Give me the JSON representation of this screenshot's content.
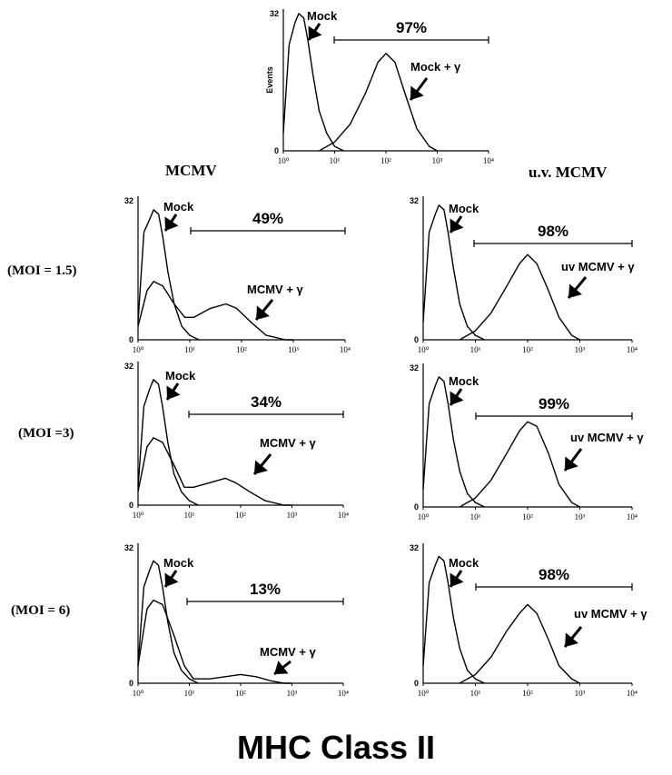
{
  "col_headers": {
    "left": "MCMV",
    "right": "u.v. MCMV"
  },
  "row_labels": [
    "(MOI = 1.5)",
    "(MOI =3)",
    "(MOI = 6)"
  ],
  "caption": "MHC Class II",
  "chart_data": [
    {
      "id": "top",
      "type": "area",
      "ylabel": "Events",
      "ylim": [
        0,
        32
      ],
      "xlim": [
        1,
        10000
      ],
      "xscale": "log",
      "xticks": [
        "10⁰",
        "10¹",
        "10²",
        "10³",
        "10⁴"
      ],
      "yticks": [
        "0",
        "32"
      ],
      "grid": false,
      "gate": {
        "label": "97%",
        "from": 10,
        "to": 10000
      },
      "series": [
        {
          "name": "Mock",
          "x": [
            1,
            1.3,
            1.7,
            2.0,
            2.5,
            3.0,
            3.8,
            5,
            7,
            10,
            15
          ],
          "y": [
            4,
            24,
            29,
            31,
            30,
            25,
            17,
            9,
            4,
            1,
            0
          ]
        },
        {
          "name": "Mock + γ",
          "x": [
            5,
            10,
            20,
            40,
            70,
            100,
            150,
            250,
            400,
            700,
            1000
          ],
          "y": [
            0,
            2,
            6,
            13,
            20,
            22,
            20,
            12,
            5,
            1,
            0
          ]
        }
      ]
    },
    {
      "id": "mcmv-1",
      "type": "area",
      "ylim": [
        0,
        32
      ],
      "xlim": [
        1,
        10000
      ],
      "xscale": "log",
      "xticks": [
        "10⁰",
        "10¹",
        "10²",
        "10³",
        "10⁴"
      ],
      "yticks": [
        "0",
        "32"
      ],
      "grid": false,
      "gate": {
        "label": "49%",
        "from": 10,
        "to": 10000
      },
      "series": [
        {
          "name": "Mock",
          "x": [
            1,
            1.3,
            1.7,
            2.0,
            2.5,
            3.0,
            3.8,
            5,
            7,
            10,
            15
          ],
          "y": [
            4,
            24,
            27,
            29,
            28,
            23,
            15,
            8,
            3,
            1,
            0
          ]
        },
        {
          "name": "MCMV + γ",
          "x": [
            1,
            1.5,
            2,
            3,
            5,
            8,
            12,
            25,
            50,
            80,
            150,
            300,
            700,
            1000
          ],
          "y": [
            3,
            11,
            13,
            12,
            8,
            5,
            5,
            7,
            8,
            7,
            4,
            1,
            0,
            0
          ]
        }
      ]
    },
    {
      "id": "uv-1",
      "type": "area",
      "ylim": [
        0,
        32
      ],
      "xlim": [
        1,
        10000
      ],
      "xscale": "log",
      "xticks": [
        "10⁰",
        "10¹",
        "10²",
        "10³",
        "10⁴"
      ],
      "yticks": [
        "0",
        "32"
      ],
      "grid": false,
      "gate": {
        "label": "98%",
        "from": 10,
        "to": 10000
      },
      "series": [
        {
          "name": "Mock",
          "x": [
            1,
            1.3,
            1.7,
            2.0,
            2.5,
            3.0,
            3.8,
            5,
            7,
            10,
            15
          ],
          "y": [
            4,
            24,
            28,
            30,
            29,
            24,
            16,
            8,
            3,
            1,
            0
          ]
        },
        {
          "name": "uv MCMV + γ",
          "x": [
            5,
            10,
            20,
            40,
            70,
            100,
            150,
            250,
            400,
            700,
            1000
          ],
          "y": [
            0,
            2,
            6,
            12,
            17,
            19,
            17,
            11,
            5,
            1,
            0
          ]
        }
      ]
    },
    {
      "id": "mcmv-2",
      "type": "area",
      "ylim": [
        0,
        32
      ],
      "xlim": [
        1,
        10000
      ],
      "xscale": "log",
      "xticks": [
        "10⁰",
        "10¹",
        "10²",
        "10³",
        "10⁴"
      ],
      "yticks": [
        "0",
        "32"
      ],
      "grid": false,
      "gate": {
        "label": "34%",
        "from": 10,
        "to": 10000
      },
      "series": [
        {
          "name": "Mock",
          "x": [
            1,
            1.3,
            1.7,
            2.0,
            2.5,
            3.0,
            3.8,
            5,
            7,
            10,
            15
          ],
          "y": [
            4,
            22,
            26,
            28,
            27,
            22,
            14,
            7,
            3,
            1,
            0
          ]
        },
        {
          "name": "MCMV + γ",
          "x": [
            1,
            1.5,
            2,
            3,
            5,
            8,
            12,
            25,
            50,
            80,
            150,
            300,
            700,
            1000
          ],
          "y": [
            3,
            13,
            15,
            14,
            9,
            4,
            4,
            5,
            6,
            5,
            3,
            1,
            0,
            0
          ]
        }
      ]
    },
    {
      "id": "uv-2",
      "type": "area",
      "ylim": [
        0,
        32
      ],
      "xlim": [
        1,
        10000
      ],
      "xscale": "log",
      "xticks": [
        "10⁰",
        "10¹",
        "10²",
        "10³",
        "10⁴"
      ],
      "yticks": [
        "0",
        "32"
      ],
      "grid": false,
      "gate": {
        "label": "99%",
        "from": 10,
        "to": 10000
      },
      "series": [
        {
          "name": "Mock",
          "x": [
            1,
            1.3,
            1.7,
            2.0,
            2.5,
            3.0,
            3.8,
            5,
            7,
            10,
            15
          ],
          "y": [
            4,
            23,
            27,
            29,
            28,
            23,
            15,
            8,
            3,
            1,
            0
          ]
        },
        {
          "name": "uv MCMV + γ",
          "x": [
            5,
            10,
            20,
            40,
            70,
            100,
            150,
            250,
            400,
            700,
            1000
          ],
          "y": [
            0,
            2,
            6,
            12,
            17,
            19,
            18,
            12,
            5,
            1,
            0
          ]
        }
      ]
    },
    {
      "id": "mcmv-3",
      "type": "area",
      "ylim": [
        0,
        32
      ],
      "xlim": [
        1,
        10000
      ],
      "xscale": "log",
      "xticks": [
        "10⁰",
        "10¹",
        "10²",
        "10³",
        "10⁴"
      ],
      "yticks": [
        "0",
        "32"
      ],
      "grid": false,
      "gate": {
        "label": "13%",
        "from": 10,
        "to": 10000
      },
      "series": [
        {
          "name": "Mock",
          "x": [
            1,
            1.3,
            1.7,
            2.0,
            2.5,
            3.0,
            3.8,
            5,
            7,
            10,
            15
          ],
          "y": [
            4,
            22,
            26,
            28,
            27,
            22,
            14,
            7,
            3,
            1,
            0
          ]
        },
        {
          "name": "MCMV + γ",
          "x": [
            1,
            1.5,
            2,
            3,
            5,
            8,
            12,
            25,
            50,
            100,
            200,
            400,
            700,
            1000
          ],
          "y": [
            4,
            17,
            19,
            18,
            11,
            4,
            1,
            1,
            1.5,
            2,
            1.5,
            0.5,
            0,
            0
          ]
        }
      ]
    },
    {
      "id": "uv-3",
      "type": "area",
      "ylim": [
        0,
        32
      ],
      "xlim": [
        1,
        10000
      ],
      "xscale": "log",
      "xticks": [
        "10⁰",
        "10¹",
        "10²",
        "10³",
        "10⁴"
      ],
      "yticks": [
        "0",
        "32"
      ],
      "grid": false,
      "gate": {
        "label": "98%",
        "from": 10,
        "to": 10000
      },
      "series": [
        {
          "name": "Mock",
          "x": [
            1,
            1.3,
            1.7,
            2.0,
            2.5,
            3.0,
            3.8,
            5,
            7,
            10,
            15
          ],
          "y": [
            4,
            23,
            27,
            29,
            28,
            23,
            15,
            8,
            3,
            1,
            0
          ]
        },
        {
          "name": "uv MCMV + γ",
          "x": [
            5,
            10,
            20,
            40,
            70,
            100,
            150,
            250,
            400,
            700,
            1000
          ],
          "y": [
            0,
            2,
            6,
            12,
            16,
            18,
            16,
            10,
            4,
            1,
            0
          ]
        }
      ]
    }
  ]
}
